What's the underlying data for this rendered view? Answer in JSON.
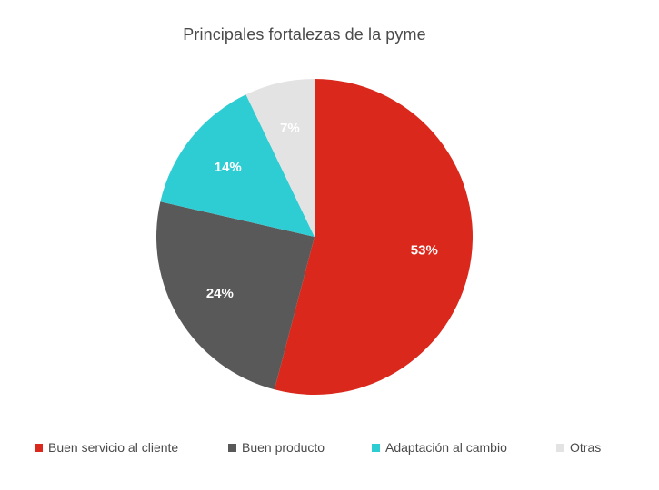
{
  "chart_data": {
    "type": "pie",
    "title": "Principales fortalezas de la pyme",
    "slices": [
      {
        "label": "Buen servicio al cliente",
        "value": 53,
        "display": "53%",
        "color": "#da291c",
        "label_color": "#ffffff"
      },
      {
        "label": "Buen producto",
        "value": 24,
        "display": "24%",
        "color": "#595959",
        "label_color": "#ffffff"
      },
      {
        "label": "Adaptación al cambio",
        "value": 14,
        "display": "14%",
        "color": "#2ecdd4",
        "label_color": "#ffffff"
      },
      {
        "label": "Otras",
        "value": 7,
        "display": "7%",
        "color": "#e3e3e3",
        "label_color": "#ffffff"
      }
    ],
    "start_angle": "top",
    "direction": "clockwise",
    "legend_position": "bottom"
  }
}
